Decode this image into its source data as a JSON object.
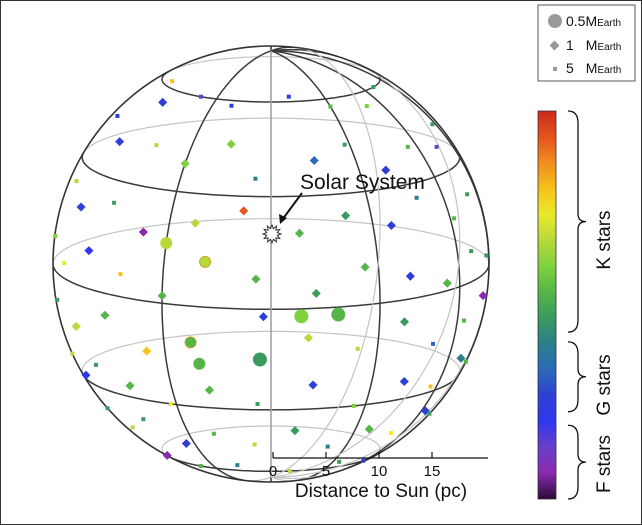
{
  "chart_data": {
    "type": "scatter",
    "title": "",
    "annotation": "Solar System",
    "scale_bar": {
      "ticks": [
        0,
        5,
        10,
        15
      ],
      "label": "Distance to Sun (pc)"
    },
    "size_legend": [
      {
        "marker": "circle",
        "value": "0.5",
        "unit": "M",
        "sub": "Earth"
      },
      {
        "marker": "diamond",
        "value": "1",
        "unit": "M",
        "sub": "Earth"
      },
      {
        "marker": "square",
        "value": "5",
        "unit": "M",
        "sub": "Earth"
      }
    ],
    "colorbar": {
      "colors": [
        "#cc2a1e",
        "#e5541b",
        "#f28c1f",
        "#f6c21a",
        "#eaea2a",
        "#b7d93a",
        "#7fd23e",
        "#56b548",
        "#3a9b5e",
        "#2a7f8b",
        "#2a6ab8",
        "#2f3fd6",
        "#2f37ee",
        "#6a3fc9",
        "#8a2ab0",
        "#2a0a3a"
      ],
      "groups": [
        {
          "label": "K stars",
          "from": 0.0,
          "to": 0.57
        },
        {
          "label": "G stars",
          "from": 0.595,
          "to": 0.775
        },
        {
          "label": "F stars",
          "from": 0.81,
          "to": 1.0
        }
      ]
    },
    "points": [
      {
        "lon": -75,
        "lat": 62,
        "m": "s",
        "c": 0.2
      },
      {
        "lon": -60,
        "lat": 55,
        "m": "d",
        "c": 0.7
      },
      {
        "lon": -40,
        "lat": 60,
        "m": "s",
        "c": 0.85
      },
      {
        "lon": -20,
        "lat": 58,
        "m": "s",
        "c": 0.75
      },
      {
        "lon": 10,
        "lat": 62,
        "m": "s",
        "c": 0.8
      },
      {
        "lon": 30,
        "lat": 57,
        "m": "s",
        "c": 0.45
      },
      {
        "lon": 50,
        "lat": 55,
        "m": "s",
        "c": 0.4
      },
      {
        "lon": 70,
        "lat": 60,
        "m": "s",
        "c": 0.55
      },
      {
        "lon": -85,
        "lat": 45,
        "m": "s",
        "c": 0.7
      },
      {
        "lon": -65,
        "lat": 40,
        "m": "d",
        "c": 0.75
      },
      {
        "lon": -45,
        "lat": 42,
        "m": "s",
        "c": 0.3
      },
      {
        "lon": -30,
        "lat": 38,
        "m": "d",
        "c": 0.4
      },
      {
        "lon": -15,
        "lat": 45,
        "m": "d",
        "c": 0.42
      },
      {
        "lon": -5,
        "lat": 35,
        "m": "s",
        "c": 0.6
      },
      {
        "lon": 15,
        "lat": 40,
        "m": "d",
        "c": 0.65
      },
      {
        "lon": 28,
        "lat": 44,
        "m": "s",
        "c": 0.5
      },
      {
        "lon": 40,
        "lat": 35,
        "m": "d",
        "c": 0.72
      },
      {
        "lon": 55,
        "lat": 40,
        "m": "s",
        "c": 0.45
      },
      {
        "lon": 72,
        "lat": 37,
        "m": "s",
        "c": 0.85
      },
      {
        "lon": 85,
        "lat": 42,
        "m": "s",
        "c": 0.5
      },
      {
        "lon": -80,
        "lat": 25,
        "m": "s",
        "c": 0.3
      },
      {
        "lon": -68,
        "lat": 20,
        "m": "d",
        "c": 0.75
      },
      {
        "lon": -52,
        "lat": 24,
        "m": "s",
        "c": 0.55
      },
      {
        "lon": -38,
        "lat": 18,
        "m": "d",
        "c": 0.9
      },
      {
        "lon": -22,
        "lat": 22,
        "m": "d",
        "c": 0.35
      },
      {
        "lon": -8,
        "lat": 26,
        "m": "d",
        "c": 0.05
      },
      {
        "lon": 8,
        "lat": 20,
        "m": "d",
        "c": 0.45
      },
      {
        "lon": 22,
        "lat": 24,
        "m": "d",
        "c": 0.5
      },
      {
        "lon": 36,
        "lat": 20,
        "m": "d",
        "c": 0.72
      },
      {
        "lon": 48,
        "lat": 26,
        "m": "s",
        "c": 0.6
      },
      {
        "lon": 62,
        "lat": 18,
        "m": "s",
        "c": 0.45
      },
      {
        "lon": 76,
        "lat": 22,
        "m": "s",
        "c": 0.55
      },
      {
        "lon": -88,
        "lat": 8,
        "m": "s",
        "c": 0.4
      },
      {
        "lon": -72,
        "lat": 4,
        "m": "s",
        "c": 0.25
      },
      {
        "lon": -58,
        "lat": 10,
        "m": "d",
        "c": 0.82
      },
      {
        "lon": -44,
        "lat": 6,
        "m": "s",
        "c": 0.2
      },
      {
        "lon": -30,
        "lat": 2,
        "m": "d",
        "c": 0.45
      },
      {
        "lon": -18,
        "lat": 12,
        "m": "c",
        "c": 0.3
      },
      {
        "lon": -4,
        "lat": 8,
        "m": "d",
        "c": 0.45
      },
      {
        "lon": 12,
        "lat": 4,
        "m": "d",
        "c": 0.5
      },
      {
        "lon": 26,
        "lat": 10,
        "m": "d",
        "c": 0.45
      },
      {
        "lon": 40,
        "lat": 6,
        "m": "d",
        "c": 0.7
      },
      {
        "lon": 54,
        "lat": 2,
        "m": "d",
        "c": 0.45
      },
      {
        "lon": 68,
        "lat": 8,
        "m": "s",
        "c": 0.55
      },
      {
        "lon": 82,
        "lat": 4,
        "m": "s",
        "c": 0.5
      },
      {
        "lon": -82,
        "lat": -8,
        "m": "s",
        "c": 0.55
      },
      {
        "lon": -66,
        "lat": -12,
        "m": "d",
        "c": 0.3
      },
      {
        "lon": -50,
        "lat": -6,
        "m": "d",
        "c": 0.45
      },
      {
        "lon": -36,
        "lat": -14,
        "m": "d",
        "c": 0.2
      },
      {
        "lon": -22,
        "lat": -10,
        "m": "c",
        "c": 0.45
      },
      {
        "lon": -2,
        "lat": -2,
        "m": "d",
        "c": 0.7
      },
      {
        "lon": 10,
        "lat": -8,
        "m": "d",
        "c": 0.35
      },
      {
        "lon": 24,
        "lat": -12,
        "m": "s",
        "c": 0.3
      },
      {
        "lon": 38,
        "lat": -6,
        "m": "d",
        "c": 0.5
      },
      {
        "lon": 50,
        "lat": -14,
        "m": "s",
        "c": 0.65
      },
      {
        "lon": 64,
        "lat": -10,
        "m": "s",
        "c": 0.45
      },
      {
        "lon": 78,
        "lat": -6,
        "m": "d",
        "c": 0.9
      },
      {
        "lon": -86,
        "lat": -24,
        "m": "s",
        "c": 0.35
      },
      {
        "lon": -74,
        "lat": -28,
        "m": "d",
        "c": 0.82
      },
      {
        "lon": -60,
        "lat": -22,
        "m": "s",
        "c": 0.5
      },
      {
        "lon": -46,
        "lat": -26,
        "m": "d",
        "c": 0.45
      },
      {
        "lon": -32,
        "lat": -30,
        "m": "s",
        "c": 0.25
      },
      {
        "lon": -18,
        "lat": -24,
        "m": "d",
        "c": 0.45
      },
      {
        "lon": -4,
        "lat": -28,
        "m": "s",
        "c": 0.55
      },
      {
        "lon": 12,
        "lat": -22,
        "m": "d",
        "c": 0.7
      },
      {
        "lon": 26,
        "lat": -30,
        "m": "s",
        "c": 0.4
      },
      {
        "lon": 42,
        "lat": -24,
        "m": "d",
        "c": 0.75
      },
      {
        "lon": 56,
        "lat": -28,
        "m": "s",
        "c": 0.2
      },
      {
        "lon": 70,
        "lat": -22,
        "m": "d",
        "c": 0.6
      },
      {
        "lon": 84,
        "lat": -26,
        "m": "s",
        "c": 0.45
      },
      {
        "lon": -78,
        "lat": -40,
        "m": "s",
        "c": 0.5
      },
      {
        "lon": -62,
        "lat": -44,
        "m": "s",
        "c": 0.35
      },
      {
        "lon": -48,
        "lat": -38,
        "m": "s",
        "c": 0.55
      },
      {
        "lon": -34,
        "lat": -46,
        "m": "d",
        "c": 0.7
      },
      {
        "lon": -20,
        "lat": -40,
        "m": "s",
        "c": 0.45
      },
      {
        "lon": -6,
        "lat": -44,
        "m": "s",
        "c": 0.3
      },
      {
        "lon": 8,
        "lat": -38,
        "m": "d",
        "c": 0.5
      },
      {
        "lon": 22,
        "lat": -46,
        "m": "s",
        "c": 0.6
      },
      {
        "lon": 36,
        "lat": -40,
        "m": "d",
        "c": 0.45
      },
      {
        "lon": 50,
        "lat": -44,
        "m": "s",
        "c": 0.25
      },
      {
        "lon": 64,
        "lat": -38,
        "m": "d",
        "c": 0.7
      },
      {
        "lon": 78,
        "lat": -42,
        "m": "s",
        "c": 0.5
      },
      {
        "lon": -64,
        "lat": -58,
        "m": "d",
        "c": 0.95
      },
      {
        "lon": -40,
        "lat": -60,
        "m": "s",
        "c": 0.45
      },
      {
        "lon": -16,
        "lat": -56,
        "m": "s",
        "c": 0.6
      },
      {
        "lon": 10,
        "lat": -60,
        "m": "s",
        "c": 0.3
      },
      {
        "lon": 34,
        "lat": -56,
        "m": "s",
        "c": 0.5
      },
      {
        "lon": 58,
        "lat": -60,
        "m": "s",
        "c": 0.75
      }
    ],
    "planets": [
      {
        "lon": 8,
        "lat": -2,
        "r": 7,
        "c": 0.42
      },
      {
        "lon": 18,
        "lat": -2,
        "r": 7,
        "c": 0.45
      },
      {
        "lon": -3,
        "lat": -14,
        "r": 7,
        "c": 0.5
      },
      {
        "lon": -30,
        "lat": 16,
        "r": 6,
        "c": 0.3
      },
      {
        "lon": -20,
        "lat": -16,
        "r": 6,
        "c": 0.48
      }
    ]
  }
}
